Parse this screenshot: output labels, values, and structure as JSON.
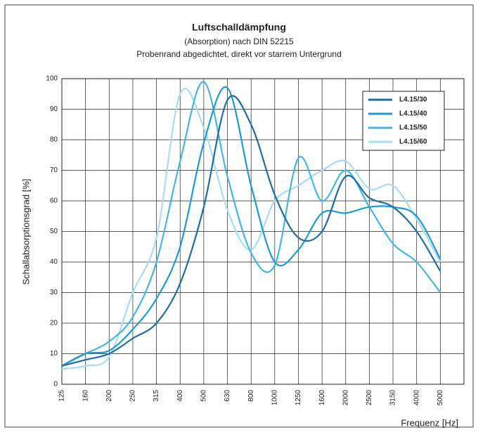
{
  "chart_data": {
    "type": "line",
    "title": "Luftschalldämpfung",
    "subtitle": [
      "(Absorption) nach DIN 52215",
      "Probenrand abgedichtet, direkt vor starrem Untergrund"
    ],
    "x_label": "Frequenz [Hz]",
    "y_label": "Schallabsorptionsgrad [%]",
    "categories": [
      "125",
      "160",
      "200",
      "250",
      "315",
      "400",
      "500",
      "630",
      "800",
      "1000",
      "1250",
      "1600",
      "2000",
      "2500",
      "3150",
      "4000",
      "5000"
    ],
    "series": [
      {
        "name": "L4.15/30",
        "color": "#1c6ea6",
        "values": [
          6,
          8,
          10,
          15,
          20,
          33,
          58,
          93,
          85,
          62,
          48,
          50,
          68,
          61,
          58,
          50,
          37
        ]
      },
      {
        "name": "L4.15/40",
        "color": "#1e9ad6",
        "values": [
          6,
          10,
          11,
          18,
          28,
          45,
          79,
          97,
          65,
          40,
          44,
          56,
          56,
          58,
          58,
          55,
          41
        ]
      },
      {
        "name": "L4.15/50",
        "color": "#45b5e4",
        "values": [
          6,
          10,
          14,
          22,
          40,
          73,
          99,
          68,
          43,
          39,
          74,
          60,
          70,
          58,
          46,
          40,
          30
        ]
      },
      {
        "name": "L4.15/60",
        "color": "#a9dcf1",
        "values": [
          5,
          6,
          9,
          30,
          48,
          95,
          84,
          57,
          44,
          60,
          65,
          70,
          73,
          64,
          65,
          54,
          40
        ]
      }
    ],
    "ylim": [
      0,
      100
    ],
    "yticks": [
      0,
      10,
      20,
      30,
      40,
      50,
      60,
      70,
      80,
      90,
      100
    ],
    "grid": true,
    "legend": "top-right"
  }
}
